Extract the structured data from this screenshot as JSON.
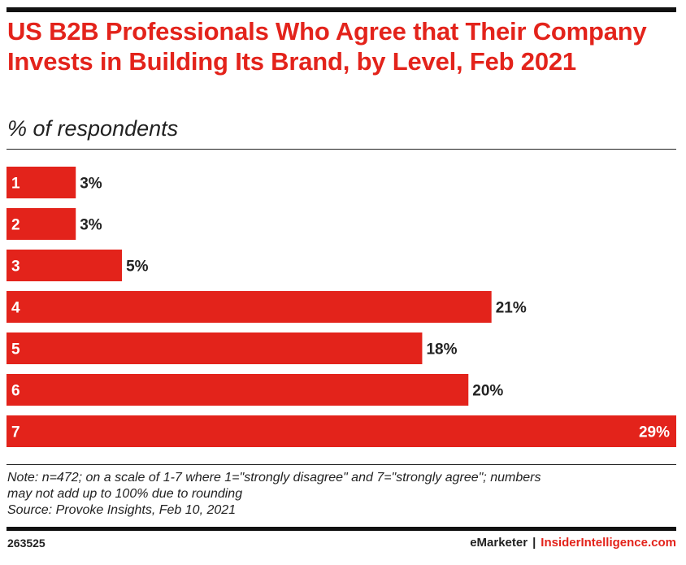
{
  "header": {
    "title": "US B2B Professionals Who Agree that Their Company Invests in Building Its Brand, by Level, Feb 2021",
    "subtitle": "% of respondents"
  },
  "chart_data": {
    "type": "bar",
    "orientation": "horizontal",
    "categories": [
      "1",
      "2",
      "3",
      "4",
      "5",
      "6",
      "7"
    ],
    "values": [
      3,
      3,
      5,
      21,
      18,
      20,
      29
    ],
    "value_labels": [
      "3%",
      "3%",
      "5%",
      "21%",
      "18%",
      "20%",
      "29%"
    ],
    "unit": "%",
    "xlim": [
      0,
      29
    ],
    "grid": false,
    "legend": "none",
    "bar_color": "#e3231b"
  },
  "footer": {
    "note_line1": "Note: n=472; on a scale of 1-7 where 1=\"strongly disagree\" and 7=\"strongly agree\"; numbers",
    "note_line2": "may not add up to 100% due to rounding",
    "source": "Source: Provoke Insights, Feb 10, 2021",
    "chart_id": "263525",
    "brand_left": "eMarketer",
    "brand_sep": "|",
    "brand_right": "InsiderIntelligence.com"
  }
}
